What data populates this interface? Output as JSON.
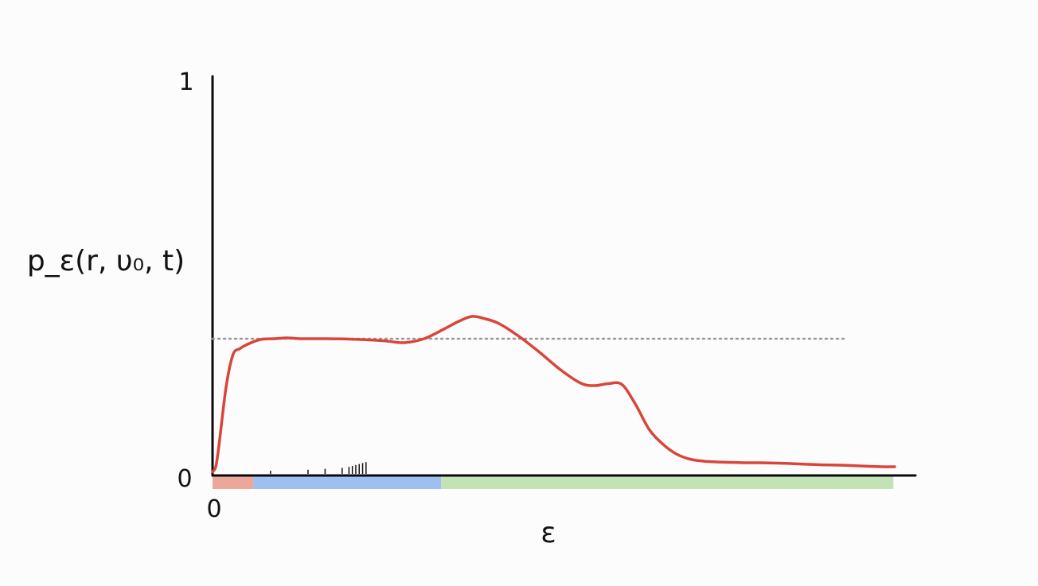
{
  "chart_data": {
    "type": "line",
    "title": "",
    "ylabel": "p_ε(r, υ₀, t)",
    "xlabel": "ε",
    "ylim": [
      0,
      1
    ],
    "y_tick_labels": {
      "top": "1",
      "bottom": "0"
    },
    "x_tick_labels": {
      "origin": "0"
    },
    "grid": false,
    "legend": "none",
    "xlim": [
      0,
      1
    ],
    "series": [
      {
        "color": "#d9453a",
        "x": [
          0.0,
          0.005,
          0.01,
          0.02,
          0.03,
          0.04,
          0.05,
          0.07,
          0.09,
          0.11,
          0.13,
          0.16,
          0.2,
          0.25,
          0.28,
          0.31,
          0.34,
          0.36,
          0.38,
          0.4,
          0.42,
          0.45,
          0.48,
          0.51,
          0.54,
          0.56,
          0.58,
          0.6,
          0.62,
          0.64,
          0.66,
          0.68,
          0.7,
          0.72,
          0.74,
          0.76,
          0.78,
          0.8,
          0.83,
          0.86,
          0.89,
          0.92,
          0.95,
          0.98,
          1.0
        ],
        "y": [
          0.005,
          0.02,
          0.08,
          0.22,
          0.3,
          0.315,
          0.325,
          0.338,
          0.34,
          0.342,
          0.34,
          0.34,
          0.339,
          0.335,
          0.33,
          0.34,
          0.365,
          0.383,
          0.396,
          0.39,
          0.378,
          0.345,
          0.305,
          0.262,
          0.228,
          0.222,
          0.227,
          0.225,
          0.175,
          0.112,
          0.075,
          0.05,
          0.037,
          0.032,
          0.03,
          0.029,
          0.028,
          0.028,
          0.027,
          0.025,
          0.023,
          0.022,
          0.02,
          0.018,
          0.018
        ]
      }
    ],
    "reference_lines": [
      {
        "y": 0.34,
        "style": "dotted",
        "color": "#999999",
        "x_end": 0.93
      }
    ],
    "x_ticks_small": [
      0.085,
      0.14,
      0.165,
      0.19,
      0.2,
      0.205,
      0.21,
      0.215,
      0.22,
      0.225
    ],
    "x_regions": [
      {
        "from": 0.0,
        "to": 0.06,
        "color": "#eca79b"
      },
      {
        "from": 0.06,
        "to": 0.335,
        "color": "#9fbff3"
      },
      {
        "from": 0.335,
        "to": 0.998,
        "color": "#c3e2b6"
      }
    ]
  }
}
